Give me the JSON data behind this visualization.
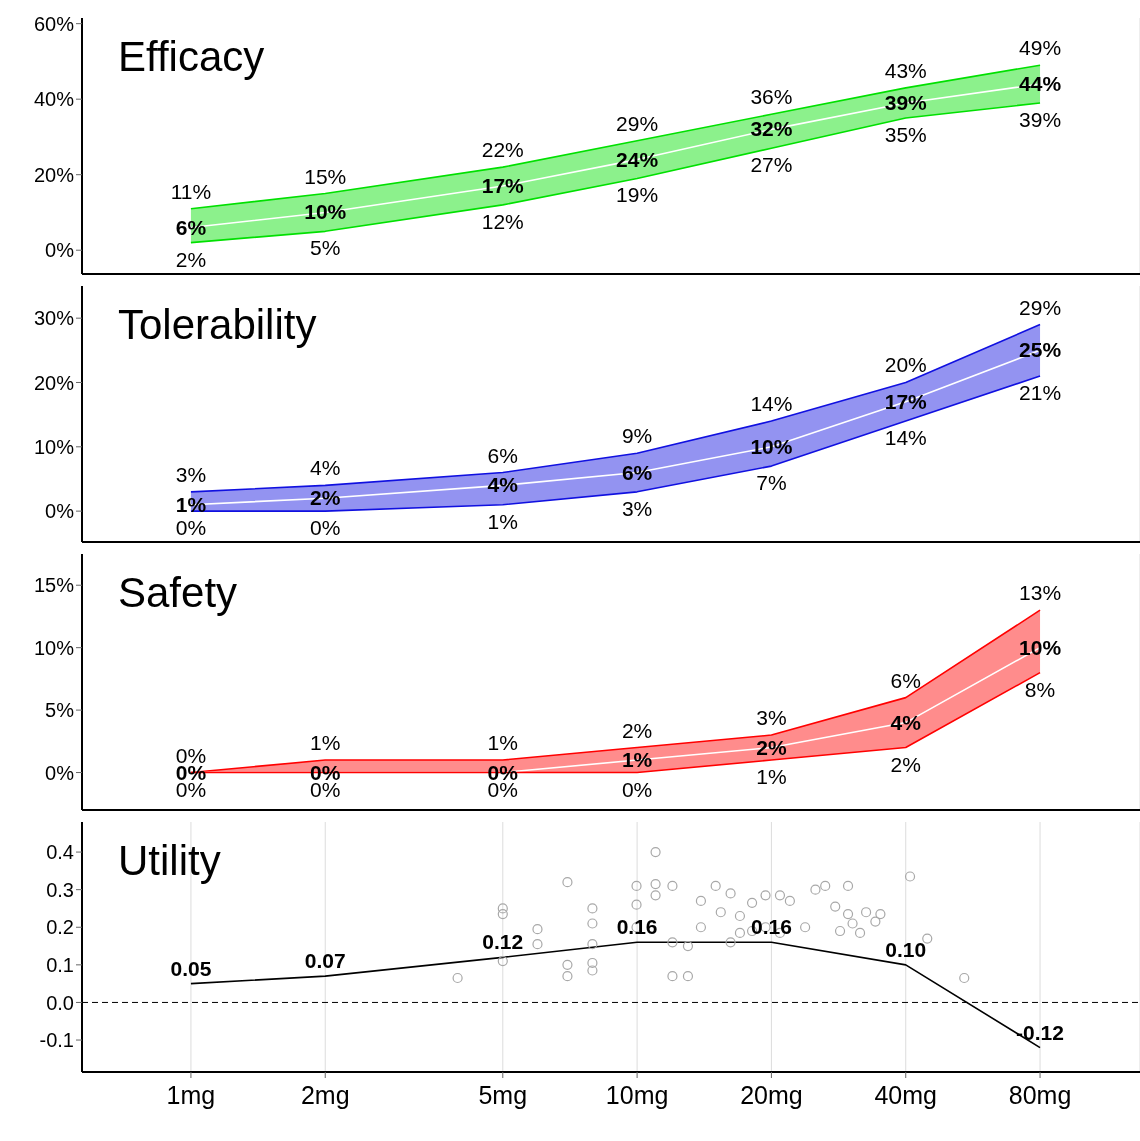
{
  "chart_data": [
    {
      "type": "line",
      "title": "Efficacy",
      "log": "x",
      "xlim": [
        0.57,
        134
      ],
      "xticks": [
        {
          "value": 1,
          "label": null
        },
        {
          "value": 2,
          "label": null
        },
        {
          "value": 5,
          "label": null
        },
        {
          "value": 10,
          "label": null
        },
        {
          "value": 20,
          "label": null
        },
        {
          "value": 40,
          "label": null
        },
        {
          "value": 80,
          "label": null
        }
      ],
      "ylim": [
        -6.3,
        61.5
      ],
      "yticks": [
        {
          "value": 0,
          "label": "0%"
        },
        {
          "value": 20,
          "label": "20%"
        },
        {
          "value": 40,
          "label": "40%"
        },
        {
          "value": 60,
          "label": "60%"
        }
      ],
      "tick_labels": "y",
      "grid": "x",
      "legend": false,
      "marker": "none",
      "x": [
        1,
        2,
        5,
        10,
        20,
        40,
        80
      ],
      "series": [
        {
          "color": "#00e000",
          "values": [
            11,
            15,
            22,
            29,
            36,
            43,
            49
          ],
          "value_labels": [
            "11%",
            "15%",
            "22%",
            "29%",
            "36%",
            "43%",
            "49%"
          ]
        },
        {
          "color": "#ffffff",
          "values": [
            6,
            10,
            17,
            24,
            32,
            39,
            44
          ],
          "lower": [
            2,
            5,
            12,
            19,
            27,
            35,
            39
          ],
          "upper": [
            11,
            15,
            22,
            29,
            36,
            43,
            49
          ],
          "value_labels": [
            "6%",
            "10%",
            "17%",
            "24%",
            "32%",
            "39%",
            "44%"
          ]
        },
        {
          "color": "#00e000",
          "values": [
            2,
            5,
            12,
            19,
            27,
            35,
            39
          ],
          "value_labels": [
            "2%",
            "5%",
            "12%",
            "19%",
            "27%",
            "35%",
            "39%"
          ]
        }
      ]
    },
    {
      "type": "line",
      "title": "Tolerability",
      "log": "x",
      "xlim": [
        0.57,
        134
      ],
      "xticks": [
        {
          "value": 1,
          "label": null
        },
        {
          "value": 2,
          "label": null
        },
        {
          "value": 5,
          "label": null
        },
        {
          "value": 10,
          "label": null
        },
        {
          "value": 20,
          "label": null
        },
        {
          "value": 40,
          "label": null
        },
        {
          "value": 80,
          "label": null
        }
      ],
      "ylim": [
        -4.8,
        35
      ],
      "yticks": [
        {
          "value": 0,
          "label": "0%"
        },
        {
          "value": 10,
          "label": "10%"
        },
        {
          "value": 20,
          "label": "20%"
        },
        {
          "value": 30,
          "label": "30%"
        }
      ],
      "tick_labels": "y",
      "grid": "x",
      "legend": false,
      "marker": "none",
      "x": [
        1,
        2,
        5,
        10,
        20,
        40,
        80
      ],
      "series": [
        {
          "color": "#1010e0",
          "values": [
            3,
            4,
            6,
            9,
            14,
            20,
            29
          ],
          "value_labels": [
            "3%",
            "4%",
            "6%",
            "9%",
            "14%",
            "20%",
            "29%"
          ]
        },
        {
          "color": "#ffffff",
          "values": [
            1,
            2,
            4,
            6,
            10,
            17,
            25
          ],
          "lower": [
            0,
            0,
            1,
            3,
            7,
            14,
            21
          ],
          "upper": [
            3,
            4,
            6,
            9,
            14,
            20,
            29
          ],
          "value_labels": [
            "1%",
            "2%",
            "4%",
            "6%",
            "10%",
            "17%",
            "25%"
          ]
        },
        {
          "color": "#1010e0",
          "values": [
            0,
            0,
            1,
            3,
            7,
            14,
            21
          ],
          "value_labels": [
            "0%",
            "0%",
            "1%",
            "3%",
            "7%",
            "14%",
            "21%"
          ]
        }
      ]
    },
    {
      "type": "line",
      "title": "Safety",
      "log": "x",
      "xlim": [
        0.57,
        134
      ],
      "xticks": [
        {
          "value": 1,
          "label": null
        },
        {
          "value": 2,
          "label": null
        },
        {
          "value": 5,
          "label": null
        },
        {
          "value": 10,
          "label": null
        },
        {
          "value": 20,
          "label": null
        },
        {
          "value": 40,
          "label": null
        },
        {
          "value": 80,
          "label": null
        }
      ],
      "ylim": [
        -3,
        17.5
      ],
      "yticks": [
        {
          "value": 0,
          "label": "0%"
        },
        {
          "value": 5,
          "label": "5%"
        },
        {
          "value": 10,
          "label": "10%"
        },
        {
          "value": 15,
          "label": "15%"
        }
      ],
      "tick_labels": "y",
      "grid": "x",
      "legend": false,
      "marker": "none",
      "x": [
        1,
        2,
        5,
        10,
        20,
        40,
        80
      ],
      "series": [
        {
          "color": "#ff0000",
          "values": [
            0,
            1,
            1,
            2,
            3,
            6,
            13
          ],
          "value_labels": [
            "0%",
            "1%",
            "1%",
            "2%",
            "3%",
            "6%",
            "13%"
          ]
        },
        {
          "color": "#ffffff",
          "values": [
            0,
            0,
            0,
            1,
            2,
            4,
            10
          ],
          "lower": [
            0,
            0,
            0,
            0,
            1,
            2,
            8
          ],
          "upper": [
            0,
            1,
            1,
            2,
            3,
            6,
            13
          ],
          "value_labels": [
            "0%",
            "0%",
            "0%",
            "1%",
            "2%",
            "4%",
            "10%"
          ]
        },
        {
          "color": "#ff0000",
          "values": [
            0,
            0,
            0,
            0,
            1,
            2,
            8
          ],
          "value_labels": [
            "0%",
            "0%",
            "0%",
            "0%",
            "1%",
            "2%",
            "8%"
          ]
        }
      ]
    },
    {
      "type": "line",
      "title": "Utility",
      "log": "x",
      "xlim": [
        0.57,
        134
      ],
      "xticks": [
        {
          "value": 1,
          "label": "1mg"
        },
        {
          "value": 2,
          "label": "2mg"
        },
        {
          "value": 5,
          "label": "5mg"
        },
        {
          "value": 10,
          "label": "10mg"
        },
        {
          "value": 20,
          "label": "20mg"
        },
        {
          "value": 40,
          "label": "40mg"
        },
        {
          "value": 80,
          "label": "80mg"
        }
      ],
      "ylim": [
        -0.185,
        0.48
      ],
      "yticks": [
        {
          "value": -0.1,
          "label": "-0.1"
        },
        {
          "value": 0,
          "label": "0.0"
        },
        {
          "value": 0.1,
          "label": "0.1"
        },
        {
          "value": 0.2,
          "label": "0.2"
        },
        {
          "value": 0.3,
          "label": "0.3"
        },
        {
          "value": 0.4,
          "label": "0.4"
        }
      ],
      "grid": "x",
      "legend": false,
      "x": [
        1,
        2,
        5,
        10,
        20,
        40,
        80
      ],
      "ref_lines": [
        {
          "axis": "y",
          "value": 0,
          "color": "#000000",
          "line_style": "dashed"
        }
      ],
      "series": [
        {
          "color": "#000000",
          "marker": "none",
          "values": [
            0.05,
            0.07,
            0.12,
            0.16,
            0.16,
            0.1,
            -0.12
          ],
          "value_labels": [
            "0.05",
            "0.07",
            "0.12",
            "0.16",
            "0.16",
            "0.10",
            "-0.12"
          ]
        },
        {
          "type": "scatter",
          "color": "#a8a8a8",
          "marker": "circle",
          "x": [
            3.96,
            5,
            5,
            5,
            5.98,
            5.98,
            6.98,
            6.98,
            6.98,
            7.94,
            7.94,
            7.94,
            7.94,
            7.94,
            9.97,
            9.97,
            9.97,
            11,
            11,
            11,
            12,
            12,
            12,
            13,
            13,
            13.9,
            13.9,
            15,
            15.4,
            16.2,
            16.2,
            17,
            17,
            18.1,
            18.1,
            19.4,
            19.4,
            20.9,
            20.9,
            22,
            23.8,
            25.1,
            26.4,
            27.8,
            28.5,
            29.7,
            29.7,
            30.4,
            31.6,
            32.6,
            34.2,
            35.1,
            40.9,
            44.7,
            54.1
          ],
          "values": [
            0.065,
            0.25,
            0.235,
            0.11,
            0.195,
            0.155,
            0.32,
            0.1,
            0.07,
            0.25,
            0.21,
            0.155,
            0.105,
            0.085,
            0.31,
            0.26,
            0.2,
            0.4,
            0.315,
            0.285,
            0.31,
            0.16,
            0.07,
            0.15,
            0.07,
            0.27,
            0.2,
            0.31,
            0.24,
            0.29,
            0.16,
            0.23,
            0.185,
            0.265,
            0.19,
            0.285,
            0.2,
            0.285,
            0.185,
            0.27,
            0.2,
            0.3,
            0.31,
            0.255,
            0.19,
            0.31,
            0.235,
            0.21,
            0.185,
            0.24,
            0.215,
            0.235,
            0.335,
            0.17,
            0.065
          ]
        }
      ]
    }
  ]
}
